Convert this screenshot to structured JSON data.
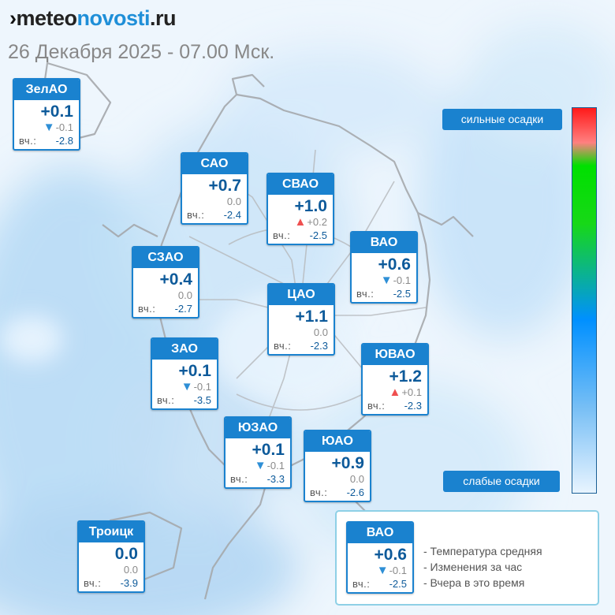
{
  "header": {
    "logo_mark": "›",
    "logo_part1": "meteo",
    "logo_part2": "novosti",
    "logo_part3": ".ru",
    "datetime": "26 Декабря 2025 - 07.00 Мск."
  },
  "colors": {
    "accent": "#1a82cf",
    "up_arrow": "#ef5050",
    "down_arrow": "#2e8fd6",
    "value_blue": "#0d5a9a"
  },
  "districts": [
    {
      "name": "ЗелАО",
      "temp": "+0.1",
      "change": "-0.1",
      "trend": "down",
      "yesterday": "-2.8"
    },
    {
      "name": "САО",
      "temp": "+0.7",
      "change": "0.0",
      "trend": "none",
      "yesterday": "-2.4"
    },
    {
      "name": "СВАО",
      "temp": "+1.0",
      "change": "+0.2",
      "trend": "up",
      "yesterday": "-2.5"
    },
    {
      "name": "ВАО",
      "temp": "+0.6",
      "change": "-0.1",
      "trend": "down",
      "yesterday": "-2.5"
    },
    {
      "name": "СЗАО",
      "temp": "+0.4",
      "change": "0.0",
      "trend": "none",
      "yesterday": "-2.7"
    },
    {
      "name": "ЦАО",
      "temp": "+1.1",
      "change": "0.0",
      "trend": "none",
      "yesterday": "-2.3"
    },
    {
      "name": "ЗАО",
      "temp": "+0.1",
      "change": "-0.1",
      "trend": "down",
      "yesterday": "-3.5"
    },
    {
      "name": "ЮВАО",
      "temp": "+1.2",
      "change": "+0.1",
      "trend": "up",
      "yesterday": "-2.3"
    },
    {
      "name": "ЮЗАО",
      "temp": "+0.1",
      "change": "-0.1",
      "trend": "down",
      "yesterday": "-3.3"
    },
    {
      "name": "ЮАО",
      "temp": "+0.9",
      "change": "0.0",
      "trend": "none",
      "yesterday": "-2.6"
    },
    {
      "name": "Троицк",
      "temp": "0.0",
      "change": "0.0",
      "trend": "none",
      "yesterday": "-3.9"
    }
  ],
  "yesterday_label": "вч.:",
  "scale": {
    "top_label": "сильные осадки",
    "bottom_label": "слабые осадки"
  },
  "legend": {
    "sample": {
      "name": "ВАО",
      "temp": "+0.6",
      "change": "-0.1",
      "trend": "down",
      "yesterday": "-2.5"
    },
    "lines": [
      "- Температура средняя",
      "- Изменения за час",
      "- Вчера в это время"
    ]
  }
}
